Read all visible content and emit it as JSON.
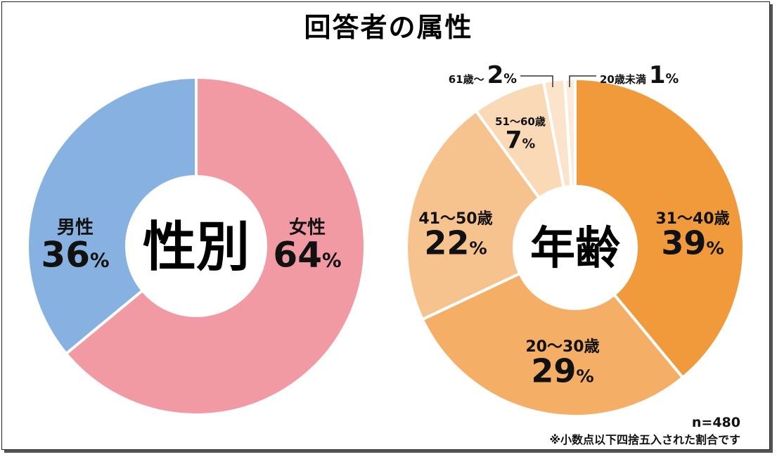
{
  "title": "回答者の属性",
  "sample_size_label": "n=480",
  "footnote": "※小数点以下四捨五入された割合です",
  "chart_data": [
    {
      "type": "pie",
      "center_label": "性別",
      "categories": [
        "女性",
        "男性"
      ],
      "values": [
        64,
        36
      ],
      "value_labels": [
        "64",
        "36"
      ],
      "unit": "%",
      "colors": [
        "#f19aa4",
        "#87b1e0"
      ]
    },
    {
      "type": "pie",
      "center_label": "年齢",
      "categories": [
        "31～40歳",
        "20～30歳",
        "41～50歳",
        "51～60歳",
        "61歳～",
        "20歳未満"
      ],
      "values": [
        39,
        29,
        22,
        7,
        2,
        1
      ],
      "value_labels": [
        "39",
        "29",
        "22",
        "7",
        "2",
        "1"
      ],
      "unit": "%",
      "colors": [
        "#f19a3c",
        "#f4ae66",
        "#f6c38f",
        "#fad9b7",
        "#fbe3cc",
        "#fcebda"
      ]
    }
  ]
}
